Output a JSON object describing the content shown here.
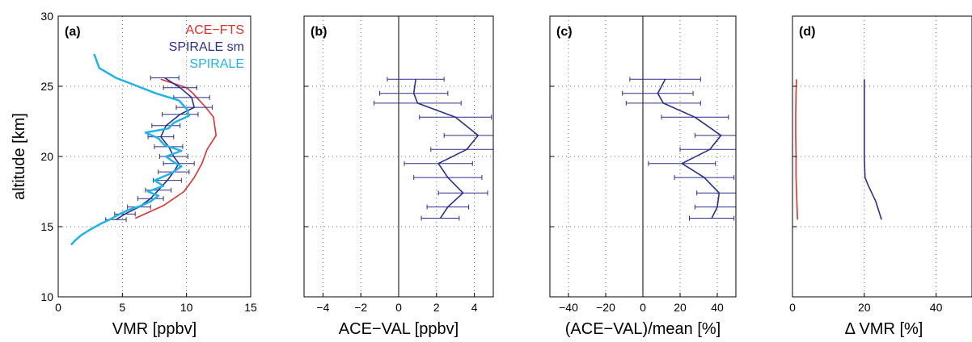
{
  "chart_data": [
    {
      "type": "line",
      "panel": "(a)",
      "xlabel": "VMR [ppbv]",
      "ylabel": "altitude [km]",
      "xlim": [
        0,
        15
      ],
      "ylim": [
        10,
        30
      ],
      "xticks": [
        "0",
        "5",
        "10",
        "15"
      ],
      "yticks": [
        "10",
        "15",
        "20",
        "25",
        "30"
      ],
      "grid": true,
      "legend": "top-right",
      "series": [
        {
          "name": "ACE−FTS",
          "color": "#e03030",
          "x": [
            6.0,
            8.2,
            9.8,
            10.6,
            11.2,
            11.6,
            12.3,
            12.1,
            11.5,
            11.0,
            10.5,
            10.0,
            8.0
          ],
          "y": [
            15.6,
            16.5,
            17.5,
            18.5,
            19.5,
            20.5,
            21.5,
            22.8,
            23.5,
            24.0,
            24.5,
            24.9,
            25.5
          ]
        },
        {
          "name": "SPIRALE sm",
          "color": "#2b2f8c",
          "x": [
            4.5,
            5.2,
            6.3,
            7.2,
            7.8,
            8.5,
            9.0,
            9.4,
            9.0,
            8.6,
            8.0,
            8.4,
            9.5,
            10.6,
            10.4,
            9.5,
            8.3
          ],
          "y": [
            15.5,
            15.9,
            16.4,
            17.0,
            17.6,
            18.3,
            18.9,
            19.5,
            20.0,
            20.7,
            21.4,
            22.2,
            23.0,
            23.5,
            24.2,
            24.9,
            25.6
          ],
          "xerr": [
            0.8,
            0.8,
            0.9,
            1.0,
            1.0,
            1.1,
            1.2,
            1.2,
            1.1,
            1.1,
            1.0,
            1.1,
            1.4,
            1.4,
            1.4,
            1.3,
            1.1
          ]
        },
        {
          "name": "SPIRALE",
          "color": "#1fb4e8",
          "x": [
            1.0,
            1.3,
            1.8,
            2.5,
            3.3,
            4.0,
            4.8,
            5.5,
            6.5,
            7.2,
            7.8,
            7.0,
            8.2,
            7.5,
            8.8,
            9.6,
            9.0,
            8.4,
            9.6,
            8.3,
            7.8,
            6.8,
            8.6,
            9.0,
            10.2,
            10.0,
            9.4,
            7.6,
            6.2,
            4.5,
            3.2,
            2.8
          ],
          "y": [
            13.7,
            14.0,
            14.4,
            14.8,
            15.2,
            15.5,
            15.9,
            16.2,
            16.5,
            16.8,
            17.2,
            17.5,
            17.9,
            18.3,
            18.8,
            19.3,
            19.6,
            20.0,
            20.4,
            20.8,
            21.3,
            21.7,
            22.0,
            22.4,
            22.9,
            23.4,
            24.0,
            24.5,
            25.0,
            25.6,
            26.3,
            27.3
          ]
        }
      ]
    },
    {
      "type": "line",
      "panel": "(b)",
      "xlabel": "ACE−VAL [ppbv]",
      "xlim": [
        -5,
        5
      ],
      "ylim": [
        10,
        30
      ],
      "xticks": [
        "−4",
        "−2",
        "0",
        "2",
        "4"
      ],
      "grid": true,
      "series": [
        {
          "color": "#2b2f8c",
          "x": [
            2.2,
            2.6,
            3.4,
            2.6,
            2.1,
            3.6,
            4.2,
            3.0,
            1.0,
            0.8,
            0.9
          ],
          "y": [
            15.6,
            16.4,
            17.4,
            18.5,
            19.5,
            20.5,
            21.5,
            22.8,
            23.8,
            24.5,
            25.5
          ],
          "xerr": [
            1.0,
            1.1,
            1.3,
            1.8,
            1.8,
            1.9,
            1.8,
            1.9,
            2.3,
            1.8,
            1.5
          ]
        }
      ]
    },
    {
      "type": "line",
      "panel": "(c)",
      "xlabel": "(ACE−VAL)/mean [%]",
      "xlim": [
        -50,
        50
      ],
      "ylim": [
        10,
        30
      ],
      "xticks": [
        "−40",
        "−20",
        "0",
        "20",
        "40"
      ],
      "grid": true,
      "series": [
        {
          "color": "#2b2f8c",
          "x": [
            37,
            40,
            41,
            33,
            21,
            36,
            42,
            28,
            11,
            8,
            12
          ],
          "y": [
            15.6,
            16.4,
            17.4,
            18.5,
            19.5,
            20.5,
            21.5,
            22.8,
            23.8,
            24.5,
            25.5
          ],
          "xerr": [
            12,
            12,
            12,
            16,
            18,
            16,
            14,
            18,
            20,
            19,
            19
          ]
        }
      ]
    },
    {
      "type": "line",
      "panel": "(d)",
      "xlabel": "Δ VMR [%]",
      "xlim": [
        0,
        50
      ],
      "ylim": [
        10,
        30
      ],
      "xticks": [
        "0",
        "20",
        "40"
      ],
      "grid": true,
      "series": [
        {
          "color": "#e03030",
          "x": [
            1.4,
            1.2,
            1.0,
            1.0,
            0.9,
            0.9,
            1.0,
            1.1
          ],
          "y": [
            15.5,
            17.0,
            18.5,
            20.0,
            21.5,
            23.0,
            24.5,
            25.5
          ]
        },
        {
          "color": "#2b2f8c",
          "x": [
            24.8,
            23.2,
            21.0,
            20.2,
            20.0,
            20.0,
            20.0,
            20.0
          ],
          "y": [
            15.5,
            16.8,
            18.0,
            18.5,
            20.0,
            22.0,
            24.0,
            25.5
          ]
        }
      ]
    }
  ]
}
